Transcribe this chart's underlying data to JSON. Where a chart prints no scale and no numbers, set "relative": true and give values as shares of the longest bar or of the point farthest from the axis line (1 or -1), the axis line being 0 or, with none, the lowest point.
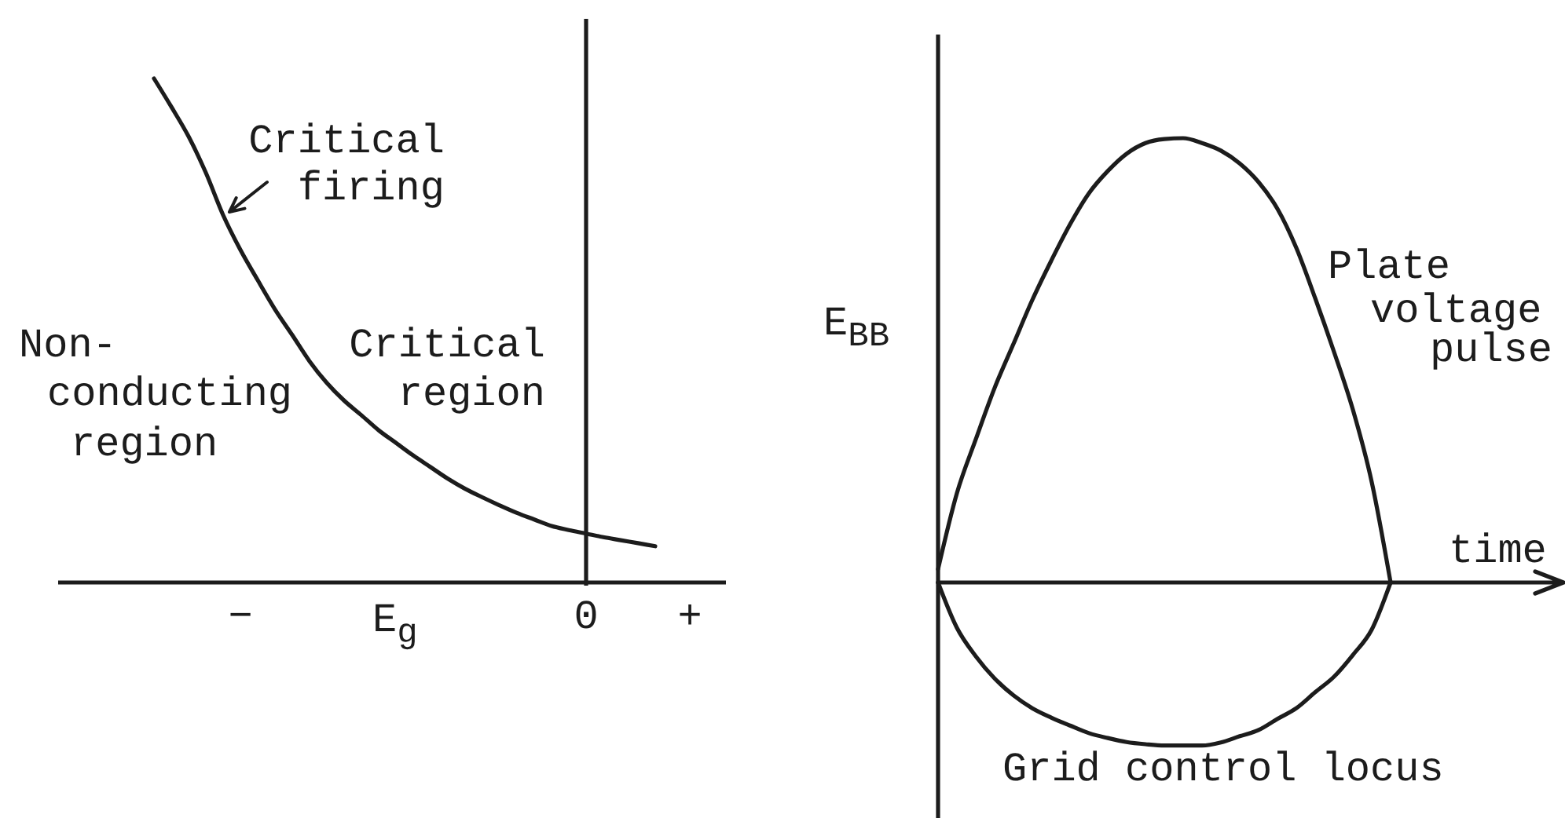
{
  "chart_data": [
    {
      "type": "line",
      "relative": true,
      "xlabel": "E$_{g}$",
      "categories": [
        null,
        null,
        null,
        null,
        null,
        "−",
        null,
        null,
        null,
        null,
        null,
        null,
        null,
        null,
        null,
        null,
        null,
        null,
        null,
        null,
        null,
        null,
        null,
        null,
        null,
        "0",
        null,
        null,
        null,
        null,
        null,
        "+"
      ],
      "series": [
        {
          "name": "Critical\nfiring",
          "color": "#1c1c1c",
          "values": [
            1.0,
            0.944,
            0.885,
            0.813,
            0.729,
            0.66,
            0.6,
            0.542,
            0.491,
            0.439,
            0.396,
            0.361,
            0.332,
            0.302,
            0.277,
            0.252,
            0.229,
            0.206,
            0.186,
            0.169,
            0.153,
            0.138,
            0.125,
            0.112,
            0.104,
            0.097,
            0.09,
            0.084,
            0.078,
            0.072,
            null,
            null
          ]
        }
      ],
      "annotations": [
        "Non-\nconducting\nregion",
        "Critical\nregion"
      ]
    },
    {
      "type": "line",
      "relative": true,
      "xlabel": "time",
      "ylabel": "E$_{BB}$",
      "categories": [
        null,
        null,
        null,
        null,
        null,
        null,
        null,
        null,
        null,
        null,
        null,
        null,
        null,
        null,
        null,
        null,
        null,
        null,
        null,
        null,
        null,
        null,
        null,
        null,
        null
      ],
      "series": [
        {
          "name": "Plate\nvoltage\npulse",
          "color": "#1c1c1c",
          "values": [
            0.03,
            0.201,
            0.322,
            0.438,
            0.537,
            0.636,
            0.724,
            0.806,
            0.876,
            0.926,
            0.965,
            0.989,
            0.998,
            1.0,
            0.989,
            0.972,
            0.943,
            0.901,
            0.841,
            0.753,
            0.64,
            0.519,
            0.389,
            0.226,
            0
          ]
        },
        {
          "name": "Grid control locus",
          "color": "#1c1c1c",
          "values": [
            0,
            -0.102,
            -0.166,
            -0.216,
            -0.254,
            -0.283,
            -0.304,
            -0.322,
            -0.339,
            -0.35,
            -0.359,
            -0.364,
            -0.367,
            -0.367,
            -0.367,
            -0.36,
            -0.346,
            -0.332,
            -0.307,
            -0.283,
            -0.247,
            -0.212,
            -0.163,
            -0.106,
            0
          ]
        }
      ]
    }
  ]
}
